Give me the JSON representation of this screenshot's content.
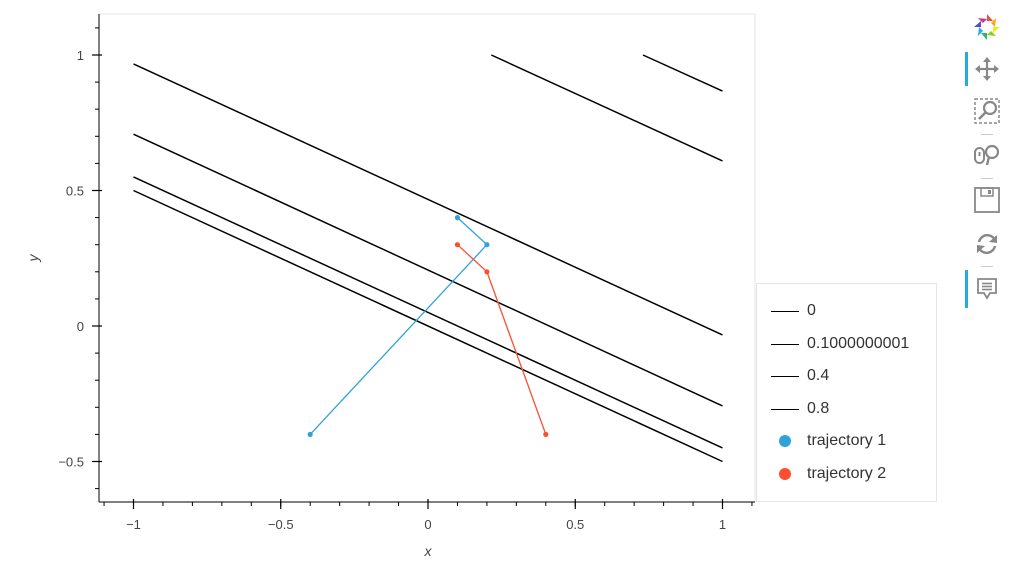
{
  "chart_data": {
    "type": "line",
    "title": "",
    "xlabel": "x",
    "ylabel": "y",
    "xlim": [
      -1.1,
      1.1
    ],
    "ylim": [
      -0.65,
      1.15
    ],
    "grid": false,
    "legend_position": "right",
    "x_ticks": [
      -1,
      -0.5,
      0,
      0.5,
      1
    ],
    "x_tick_labels": [
      "−1",
      "−0.5",
      "0",
      "0.5",
      "1"
    ],
    "y_ticks": [
      -0.5,
      0,
      0.5,
      1
    ],
    "y_tick_labels": [
      "−0.5",
      "0",
      "0.5",
      "1"
    ],
    "contour_levels": [
      "0",
      "0.1000000001",
      "0.4",
      "0.8"
    ],
    "contour_lines": [
      {
        "x": [
          -1,
          1
        ],
        "y": [
          0.967,
          -0.033
        ]
      },
      {
        "x": [
          -1,
          1
        ],
        "y": [
          0.708,
          -0.295
        ]
      },
      {
        "x": [
          -1,
          1
        ],
        "y": [
          0.55,
          -0.45
        ]
      },
      {
        "x": [
          -1,
          1
        ],
        "y": [
          0.5,
          -0.5
        ]
      },
      {
        "x": [
          0.215,
          1
        ],
        "y": [
          1.0,
          0.609
        ]
      },
      {
        "x": [
          0.73,
          1
        ],
        "y": [
          1.0,
          0.867
        ]
      }
    ],
    "series": [
      {
        "name": "trajectory 1",
        "color": "#30a2da",
        "x": [
          -0.4,
          0.2,
          0.1
        ],
        "y": [
          -0.4,
          0.3,
          0.4
        ]
      },
      {
        "name": "trajectory 2",
        "color": "#fc4f30",
        "x": [
          0.1,
          0.2,
          0.4
        ],
        "y": [
          0.3,
          0.2,
          -0.4
        ]
      }
    ]
  },
  "legend": {
    "items": [
      {
        "label": "0",
        "kind": "line",
        "color": "#000000"
      },
      {
        "label": "0.1000000001",
        "kind": "line",
        "color": "#000000"
      },
      {
        "label": "0.4",
        "kind": "line",
        "color": "#000000"
      },
      {
        "label": "0.8",
        "kind": "line",
        "color": "#000000"
      },
      {
        "label": "trajectory 1",
        "kind": "dot",
        "color": "#30a2da"
      },
      {
        "label": "trajectory 2",
        "kind": "dot",
        "color": "#fc4f30"
      }
    ]
  },
  "toolbar": {
    "tools": [
      {
        "name": "bokeh-logo",
        "icon": "bokeh-logo-icon",
        "active": false
      },
      {
        "name": "pan",
        "icon": "pan-icon",
        "active": true
      },
      {
        "name": "box-zoom",
        "icon": "box-zoom-icon",
        "active": false
      },
      {
        "name": "wheel-zoom",
        "icon": "wheel-zoom-icon",
        "active": false
      },
      {
        "name": "save",
        "icon": "save-icon",
        "active": false
      },
      {
        "name": "reset",
        "icon": "reset-icon",
        "active": false
      },
      {
        "name": "hover",
        "icon": "hover-icon",
        "active": true
      }
    ]
  }
}
